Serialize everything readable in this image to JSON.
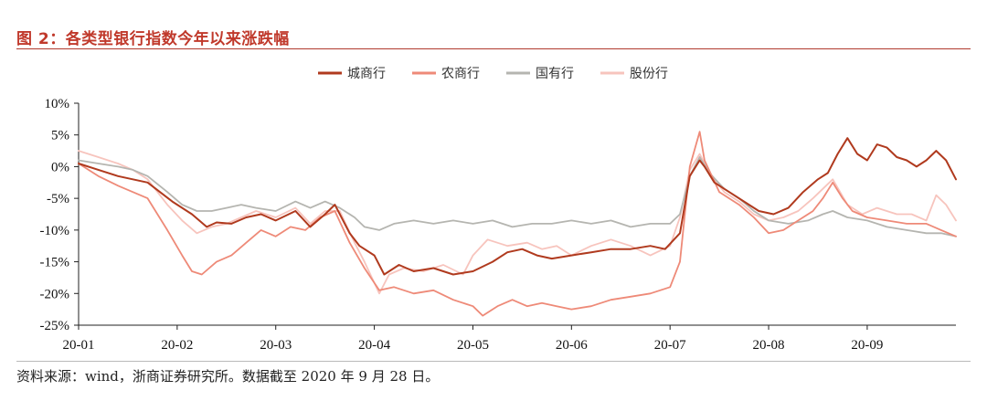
{
  "header": {
    "title": "图 2：各类型银行指数今年以来涨跌幅"
  },
  "footer": {
    "source": "资料来源：wind，浙商证券研究所。数据截至 2020 年 9 月 28 日。"
  },
  "colors": {
    "城商行": "#b03a1e",
    "农商行": "#ee8a78",
    "国有行": "#b5b5b0",
    "股份行": "#f7c4bd"
  },
  "chart_data": {
    "type": "line",
    "title": "",
    "xlabel": "",
    "ylabel": "",
    "x_ticks": [
      "20-01",
      "20-02",
      "20-03",
      "20-04",
      "20-05",
      "20-06",
      "20-07",
      "20-08",
      "20-09"
    ],
    "y_ticks": [
      "10%",
      "5%",
      "0%",
      "-5%",
      "-10%",
      "-15%",
      "-20%",
      "-25%"
    ],
    "ylim": [
      -25,
      10
    ],
    "x_range_months": [
      0,
      8.9
    ],
    "legend": {
      "placement": "top-center",
      "entries": [
        "城商行",
        "农商行",
        "国有行",
        "股份行"
      ]
    },
    "grid": false,
    "series": [
      {
        "name": "城商行",
        "points": [
          [
            0.0,
            0.5
          ],
          [
            0.2,
            -0.5
          ],
          [
            0.4,
            -1.5
          ],
          [
            0.55,
            -2.0
          ],
          [
            0.7,
            -2.5
          ],
          [
            0.95,
            -5.5
          ],
          [
            1.15,
            -7.5
          ],
          [
            1.3,
            -9.5
          ],
          [
            1.4,
            -8.8
          ],
          [
            1.55,
            -9.0
          ],
          [
            1.7,
            -8.0
          ],
          [
            1.85,
            -7.5
          ],
          [
            2.0,
            -8.5
          ],
          [
            2.2,
            -7.0
          ],
          [
            2.35,
            -9.5
          ],
          [
            2.5,
            -7.5
          ],
          [
            2.6,
            -6.0
          ],
          [
            2.75,
            -10.5
          ],
          [
            2.85,
            -12.5
          ],
          [
            3.0,
            -14.0
          ],
          [
            3.1,
            -17.0
          ],
          [
            3.25,
            -15.5
          ],
          [
            3.4,
            -16.5
          ],
          [
            3.6,
            -16.0
          ],
          [
            3.8,
            -17.0
          ],
          [
            4.0,
            -16.5
          ],
          [
            4.2,
            -15.0
          ],
          [
            4.35,
            -13.5
          ],
          [
            4.5,
            -13.0
          ],
          [
            4.65,
            -14.0
          ],
          [
            4.8,
            -14.5
          ],
          [
            5.0,
            -14.0
          ],
          [
            5.2,
            -13.5
          ],
          [
            5.4,
            -13.0
          ],
          [
            5.6,
            -13.0
          ],
          [
            5.8,
            -12.5
          ],
          [
            5.95,
            -13.0
          ],
          [
            6.1,
            -10.5
          ],
          [
            6.2,
            -1.5
          ],
          [
            6.3,
            1.0
          ],
          [
            6.35,
            0.0
          ],
          [
            6.45,
            -2.5
          ],
          [
            6.6,
            -4.0
          ],
          [
            6.75,
            -5.5
          ],
          [
            6.9,
            -7.0
          ],
          [
            7.05,
            -7.5
          ],
          [
            7.2,
            -6.5
          ],
          [
            7.35,
            -4.0
          ],
          [
            7.5,
            -2.0
          ],
          [
            7.6,
            -1.0
          ],
          [
            7.7,
            2.0
          ],
          [
            7.8,
            4.5
          ],
          [
            7.9,
            2.0
          ],
          [
            8.0,
            1.0
          ],
          [
            8.1,
            3.5
          ],
          [
            8.2,
            3.0
          ],
          [
            8.3,
            1.5
          ],
          [
            8.4,
            1.0
          ],
          [
            8.5,
            0.0
          ],
          [
            8.6,
            1.0
          ],
          [
            8.7,
            2.5
          ],
          [
            8.8,
            1.0
          ],
          [
            8.9,
            -2.0
          ]
        ]
      },
      {
        "name": "农商行",
        "points": [
          [
            0.0,
            0.5
          ],
          [
            0.2,
            -1.5
          ],
          [
            0.4,
            -3.0
          ],
          [
            0.55,
            -4.0
          ],
          [
            0.7,
            -5.0
          ],
          [
            0.9,
            -10.0
          ],
          [
            1.05,
            -14.0
          ],
          [
            1.15,
            -16.5
          ],
          [
            1.25,
            -17.0
          ],
          [
            1.4,
            -15.0
          ],
          [
            1.55,
            -14.0
          ],
          [
            1.7,
            -12.0
          ],
          [
            1.85,
            -10.0
          ],
          [
            2.0,
            -11.0
          ],
          [
            2.15,
            -9.5
          ],
          [
            2.3,
            -10.0
          ],
          [
            2.45,
            -8.0
          ],
          [
            2.6,
            -7.0
          ],
          [
            2.75,
            -12.0
          ],
          [
            2.9,
            -16.0
          ],
          [
            3.05,
            -19.5
          ],
          [
            3.2,
            -19.0
          ],
          [
            3.4,
            -20.0
          ],
          [
            3.6,
            -19.5
          ],
          [
            3.8,
            -21.0
          ],
          [
            4.0,
            -22.0
          ],
          [
            4.1,
            -23.5
          ],
          [
            4.25,
            -22.0
          ],
          [
            4.4,
            -21.0
          ],
          [
            4.55,
            -22.0
          ],
          [
            4.7,
            -21.5
          ],
          [
            4.85,
            -22.0
          ],
          [
            5.0,
            -22.5
          ],
          [
            5.2,
            -22.0
          ],
          [
            5.4,
            -21.0
          ],
          [
            5.6,
            -20.5
          ],
          [
            5.8,
            -20.0
          ],
          [
            6.0,
            -19.0
          ],
          [
            6.1,
            -15.0
          ],
          [
            6.2,
            0.0
          ],
          [
            6.3,
            5.5
          ],
          [
            6.35,
            1.0
          ],
          [
            6.5,
            -4.0
          ],
          [
            6.7,
            -6.0
          ],
          [
            6.85,
            -8.0
          ],
          [
            7.0,
            -10.5
          ],
          [
            7.15,
            -10.0
          ],
          [
            7.3,
            -8.5
          ],
          [
            7.45,
            -7.0
          ],
          [
            7.55,
            -5.0
          ],
          [
            7.65,
            -2.5
          ],
          [
            7.75,
            -5.0
          ],
          [
            7.85,
            -7.0
          ],
          [
            8.0,
            -8.0
          ],
          [
            8.2,
            -8.5
          ],
          [
            8.4,
            -9.0
          ],
          [
            8.6,
            -9.0
          ],
          [
            8.75,
            -10.0
          ],
          [
            8.9,
            -11.0
          ]
        ]
      },
      {
        "name": "国有行",
        "points": [
          [
            0.0,
            1.0
          ],
          [
            0.2,
            0.5
          ],
          [
            0.4,
            0.0
          ],
          [
            0.55,
            -0.5
          ],
          [
            0.7,
            -1.5
          ],
          [
            0.9,
            -4.0
          ],
          [
            1.05,
            -6.0
          ],
          [
            1.2,
            -7.0
          ],
          [
            1.35,
            -7.0
          ],
          [
            1.5,
            -6.5
          ],
          [
            1.65,
            -6.0
          ],
          [
            1.8,
            -6.5
          ],
          [
            2.0,
            -7.0
          ],
          [
            2.2,
            -5.5
          ],
          [
            2.35,
            -6.5
          ],
          [
            2.5,
            -5.5
          ],
          [
            2.65,
            -6.5
          ],
          [
            2.8,
            -8.0
          ],
          [
            2.9,
            -9.5
          ],
          [
            3.05,
            -10.0
          ],
          [
            3.2,
            -9.0
          ],
          [
            3.4,
            -8.5
          ],
          [
            3.6,
            -9.0
          ],
          [
            3.8,
            -8.5
          ],
          [
            4.0,
            -9.0
          ],
          [
            4.2,
            -8.5
          ],
          [
            4.4,
            -9.5
          ],
          [
            4.6,
            -9.0
          ],
          [
            4.8,
            -9.0
          ],
          [
            5.0,
            -8.5
          ],
          [
            5.2,
            -9.0
          ],
          [
            5.4,
            -8.5
          ],
          [
            5.6,
            -9.5
          ],
          [
            5.8,
            -9.0
          ],
          [
            6.0,
            -9.0
          ],
          [
            6.1,
            -7.5
          ],
          [
            6.2,
            -1.5
          ],
          [
            6.3,
            1.5
          ],
          [
            6.4,
            -1.0
          ],
          [
            6.55,
            -3.5
          ],
          [
            6.7,
            -5.0
          ],
          [
            6.85,
            -7.0
          ],
          [
            7.0,
            -8.5
          ],
          [
            7.2,
            -9.0
          ],
          [
            7.4,
            -8.5
          ],
          [
            7.55,
            -7.5
          ],
          [
            7.65,
            -7.0
          ],
          [
            7.8,
            -8.0
          ],
          [
            8.0,
            -8.5
          ],
          [
            8.2,
            -9.5
          ],
          [
            8.4,
            -10.0
          ],
          [
            8.6,
            -10.5
          ],
          [
            8.75,
            -10.5
          ],
          [
            8.9,
            -11.0
          ]
        ]
      },
      {
        "name": "股份行",
        "points": [
          [
            0.0,
            2.5
          ],
          [
            0.2,
            1.5
          ],
          [
            0.4,
            0.5
          ],
          [
            0.55,
            -0.5
          ],
          [
            0.7,
            -2.0
          ],
          [
            0.9,
            -6.0
          ],
          [
            1.05,
            -8.5
          ],
          [
            1.2,
            -10.5
          ],
          [
            1.35,
            -9.5
          ],
          [
            1.5,
            -9.0
          ],
          [
            1.65,
            -8.0
          ],
          [
            1.8,
            -7.0
          ],
          [
            2.0,
            -8.0
          ],
          [
            2.2,
            -6.5
          ],
          [
            2.35,
            -9.0
          ],
          [
            2.5,
            -7.0
          ],
          [
            2.65,
            -7.0
          ],
          [
            2.8,
            -12.0
          ],
          [
            2.9,
            -15.0
          ],
          [
            3.05,
            -20.0
          ],
          [
            3.15,
            -17.0
          ],
          [
            3.3,
            -16.0
          ],
          [
            3.5,
            -16.5
          ],
          [
            3.7,
            -15.5
          ],
          [
            3.9,
            -17.0
          ],
          [
            4.0,
            -14.0
          ],
          [
            4.15,
            -11.5
          ],
          [
            4.35,
            -12.5
          ],
          [
            4.55,
            -12.0
          ],
          [
            4.7,
            -13.0
          ],
          [
            4.85,
            -12.5
          ],
          [
            5.0,
            -14.0
          ],
          [
            5.2,
            -12.5
          ],
          [
            5.4,
            -11.5
          ],
          [
            5.6,
            -12.5
          ],
          [
            5.8,
            -14.0
          ],
          [
            6.0,
            -12.5
          ],
          [
            6.1,
            -8.0
          ],
          [
            6.2,
            -0.5
          ],
          [
            6.3,
            2.0
          ],
          [
            6.4,
            -1.0
          ],
          [
            6.55,
            -4.0
          ],
          [
            6.7,
            -5.5
          ],
          [
            6.85,
            -7.5
          ],
          [
            7.0,
            -8.5
          ],
          [
            7.15,
            -8.0
          ],
          [
            7.3,
            -7.0
          ],
          [
            7.45,
            -5.0
          ],
          [
            7.55,
            -3.5
          ],
          [
            7.65,
            -2.0
          ],
          [
            7.8,
            -6.0
          ],
          [
            7.95,
            -7.5
          ],
          [
            8.1,
            -6.5
          ],
          [
            8.3,
            -7.5
          ],
          [
            8.45,
            -7.5
          ],
          [
            8.6,
            -8.5
          ],
          [
            8.7,
            -4.5
          ],
          [
            8.8,
            -6.0
          ],
          [
            8.9,
            -8.5
          ]
        ]
      }
    ]
  }
}
